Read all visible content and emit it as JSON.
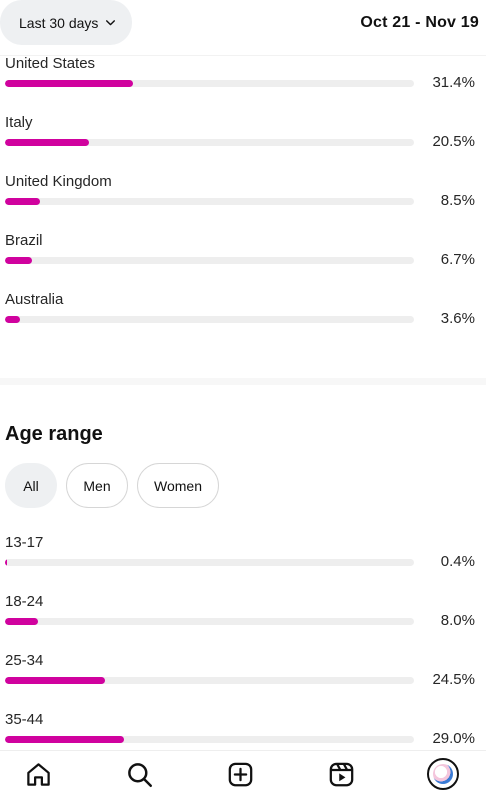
{
  "header": {
    "period_label": "Last 30 days",
    "date_range": "Oct 21 - Nov 19"
  },
  "colors": {
    "accent": "#d0029e",
    "track": "#eeeeee"
  },
  "countries": [
    {
      "label": "United States",
      "value": "31.4%",
      "percent": 31.4
    },
    {
      "label": "Italy",
      "value": "20.5%",
      "percent": 20.5
    },
    {
      "label": "United Kingdom",
      "value": "8.5%",
      "percent": 8.5
    },
    {
      "label": "Brazil",
      "value": "6.7%",
      "percent": 6.7
    },
    {
      "label": "Australia",
      "value": "3.6%",
      "percent": 3.6
    }
  ],
  "age_section": {
    "title": "Age range",
    "filters": [
      "All",
      "Men",
      "Women"
    ],
    "selected_filter": "All",
    "ranges": [
      {
        "label": "13-17",
        "value": "0.4%",
        "percent": 0.4
      },
      {
        "label": "18-24",
        "value": "8.0%",
        "percent": 8.0
      },
      {
        "label": "25-34",
        "value": "24.5%",
        "percent": 24.5
      },
      {
        "label": "35-44",
        "value": "29.0%",
        "percent": 29.0
      }
    ]
  },
  "nav": {
    "items": [
      "home-icon",
      "search-icon",
      "create-icon",
      "reels-icon",
      "profile-avatar"
    ]
  }
}
